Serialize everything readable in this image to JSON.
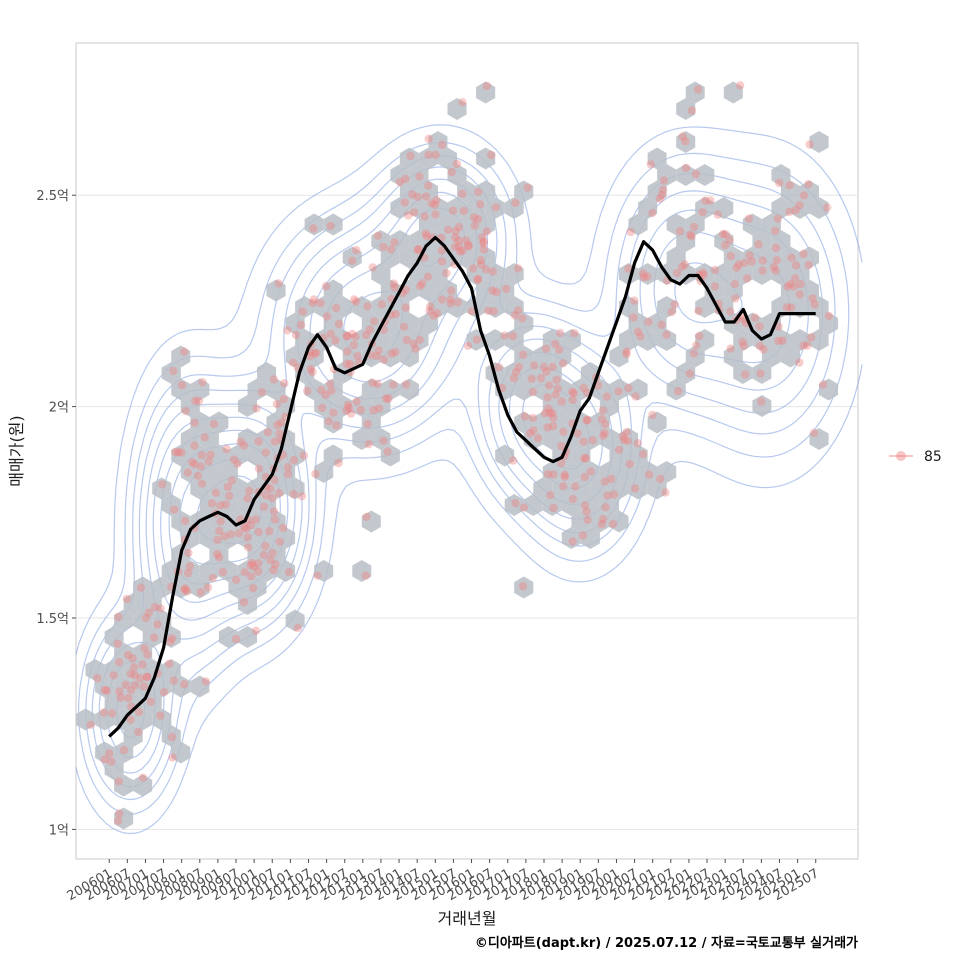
{
  "chart_data": {
    "type": "scatter",
    "title": "",
    "xlabel": "거래년월",
    "ylabel": "매매가(원)",
    "caption": "©디아파트(dapt.kr) / 2025.07.12 / 자료=국토교통부 실거래가",
    "x_ticks": [
      "200601",
      "200607",
      "200701",
      "200707",
      "200801",
      "200807",
      "200901",
      "200907",
      "201001",
      "201007",
      "201101",
      "201107",
      "201201",
      "201207",
      "201301",
      "201307",
      "201401",
      "201407",
      "201501",
      "201507",
      "201601",
      "201607",
      "201701",
      "201707",
      "201801",
      "201807",
      "201901",
      "201907",
      "202001",
      "202007",
      "202101",
      "202107",
      "202201",
      "202207",
      "202301",
      "202307",
      "202401",
      "202407",
      "202501",
      "202507"
    ],
    "y_ticks": [
      {
        "value": 1.0,
        "label": "1억"
      },
      {
        "value": 1.5,
        "label": "1.5억"
      },
      {
        "value": 2.0,
        "label": "2억"
      },
      {
        "value": 2.5,
        "label": "2.5억"
      }
    ],
    "xlim": [
      "2005-02",
      "2026-09"
    ],
    "ylim": [
      0.93,
      2.86
    ],
    "grid": true,
    "legend": {
      "position": "right",
      "entries": [
        {
          "label": "85",
          "color": "#f08080"
        }
      ]
    },
    "colors": {
      "points": "#f08080",
      "hex": "#b8bec6",
      "contour": "#7b9de0",
      "trend": "#000000",
      "grid": "#e5e5e5",
      "panel_border": "#c8c8c8"
    },
    "series": [
      {
        "kind": "trend_line",
        "x": [
          "2006-01",
          "2006-04",
          "2006-07",
          "2006-10",
          "2007-01",
          "2007-04",
          "2007-07",
          "2007-10",
          "2008-01",
          "2008-04",
          "2008-07",
          "2008-10",
          "2009-01",
          "2009-04",
          "2009-07",
          "2009-10",
          "2010-01",
          "2010-04",
          "2010-07",
          "2010-10",
          "2011-01",
          "2011-04",
          "2011-07",
          "2011-10",
          "2012-01",
          "2012-04",
          "2012-07",
          "2012-10",
          "2013-01",
          "2013-04",
          "2013-07",
          "2013-10",
          "2014-01",
          "2014-04",
          "2014-07",
          "2014-10",
          "2015-01",
          "2015-04",
          "2015-07",
          "2015-10",
          "2016-01",
          "2016-04",
          "2016-07",
          "2016-10",
          "2017-01",
          "2017-04",
          "2017-07",
          "2017-10",
          "2018-01",
          "2018-04",
          "2018-07",
          "2018-10",
          "2019-01",
          "2019-04",
          "2019-07",
          "2019-10",
          "2020-01",
          "2020-04",
          "2020-07",
          "2020-10",
          "2021-01",
          "2021-04",
          "2021-07",
          "2021-10",
          "2022-01",
          "2022-04",
          "2022-07",
          "2022-10",
          "2023-01",
          "2023-04",
          "2023-07",
          "2023-10",
          "2024-01",
          "2024-04",
          "2024-07",
          "2024-10",
          "2025-01",
          "2025-04",
          "2025-07"
        ],
        "y": [
          1.22,
          1.24,
          1.27,
          1.29,
          1.31,
          1.36,
          1.43,
          1.55,
          1.66,
          1.71,
          1.73,
          1.74,
          1.75,
          1.74,
          1.72,
          1.73,
          1.78,
          1.81,
          1.84,
          1.9,
          1.99,
          2.08,
          2.14,
          2.17,
          2.14,
          2.09,
          2.08,
          2.09,
          2.1,
          2.15,
          2.19,
          2.23,
          2.27,
          2.31,
          2.34,
          2.38,
          2.4,
          2.38,
          2.35,
          2.32,
          2.28,
          2.18,
          2.12,
          2.04,
          1.98,
          1.94,
          1.92,
          1.9,
          1.88,
          1.87,
          1.88,
          1.93,
          1.99,
          2.02,
          2.08,
          2.14,
          2.2,
          2.26,
          2.34,
          2.39,
          2.37,
          2.33,
          2.3,
          2.29,
          2.31,
          2.31,
          2.28,
          2.24,
          2.2,
          2.2,
          2.23,
          2.18,
          2.16,
          2.17,
          2.22,
          2.22,
          2.22,
          2.22,
          2.22
        ]
      }
    ],
    "scatter_clusters": [
      {
        "x": "2006-06",
        "y": 1.3,
        "sx": 0.45,
        "sy": 0.1,
        "n": 30
      },
      {
        "x": "2007-06",
        "y": 1.42,
        "sx": 0.45,
        "sy": 0.1,
        "n": 30
      },
      {
        "x": "2008-06",
        "y": 1.78,
        "sx": 0.55,
        "sy": 0.14,
        "n": 40
      },
      {
        "x": "2009-09",
        "y": 1.74,
        "sx": 0.6,
        "sy": 0.12,
        "n": 45
      },
      {
        "x": "2010-09",
        "y": 1.85,
        "sx": 0.6,
        "sy": 0.18,
        "n": 40
      },
      {
        "x": "2011-09",
        "y": 2.15,
        "sx": 0.55,
        "sy": 0.12,
        "n": 35
      },
      {
        "x": "2012-09",
        "y": 2.08,
        "sx": 0.55,
        "sy": 0.1,
        "n": 30
      },
      {
        "x": "2013-09",
        "y": 2.18,
        "sx": 0.55,
        "sy": 0.13,
        "n": 35
      },
      {
        "x": "2014-09",
        "y": 2.4,
        "sx": 0.55,
        "sy": 0.1,
        "n": 40
      },
      {
        "x": "2015-09",
        "y": 2.38,
        "sx": 0.55,
        "sy": 0.12,
        "n": 35
      },
      {
        "x": "2016-09",
        "y": 2.3,
        "sx": 0.55,
        "sy": 0.14,
        "n": 25
      },
      {
        "x": "2017-09",
        "y": 2.02,
        "sx": 0.55,
        "sy": 0.1,
        "n": 30
      },
      {
        "x": "2018-09",
        "y": 1.88,
        "sx": 0.55,
        "sy": 0.12,
        "n": 35
      },
      {
        "x": "2019-09",
        "y": 1.9,
        "sx": 0.55,
        "sy": 0.12,
        "n": 30
      },
      {
        "x": "2020-09",
        "y": 2.1,
        "sx": 0.55,
        "sy": 0.15,
        "n": 25
      },
      {
        "x": "2021-09",
        "y": 2.4,
        "sx": 0.55,
        "sy": 0.15,
        "n": 25
      },
      {
        "x": "2022-09",
        "y": 2.28,
        "sx": 0.55,
        "sy": 0.12,
        "n": 25
      },
      {
        "x": "2023-09",
        "y": 2.28,
        "sx": 0.55,
        "sy": 0.12,
        "n": 25
      },
      {
        "x": "2024-09",
        "y": 2.2,
        "sx": 0.55,
        "sy": 0.16,
        "n": 20
      },
      {
        "x": "2025-03",
        "y": 2.3,
        "sx": 0.4,
        "sy": 0.2,
        "n": 15
      }
    ],
    "scatter_extra": [
      {
        "x": "2006-04",
        "y": 1.02
      },
      {
        "x": "2006-01",
        "y": 1.18
      },
      {
        "x": "2007-10",
        "y": 1.17
      },
      {
        "x": "2015-10",
        "y": 2.72
      },
      {
        "x": "2022-02",
        "y": 2.7
      },
      {
        "x": "2022-04",
        "y": 2.75
      },
      {
        "x": "2023-06",
        "y": 2.76
      },
      {
        "x": "2025-05",
        "y": 2.62
      },
      {
        "x": "2011-10",
        "y": 1.6
      },
      {
        "x": "2013-02",
        "y": 1.6
      },
      {
        "x": "2009-07",
        "y": 1.45
      },
      {
        "x": "2008-09",
        "y": 1.35
      }
    ],
    "density_peaks": [
      {
        "x": "2009-11",
        "y": 1.76,
        "sx": 0.9,
        "sy": 0.14,
        "w": 1.0
      },
      {
        "x": "2008-03",
        "y": 1.72,
        "sx": 0.8,
        "sy": 0.18,
        "w": 0.7
      },
      {
        "x": "2006-08",
        "y": 1.28,
        "sx": 0.7,
        "sy": 0.12,
        "w": 0.55
      },
      {
        "x": "2013-03",
        "y": 2.18,
        "sx": 1.4,
        "sy": 0.14,
        "w": 0.7
      },
      {
        "x": "2015-03",
        "y": 2.4,
        "sx": 1.0,
        "sy": 0.11,
        "w": 0.55
      },
      {
        "x": "2017-09",
        "y": 2.0,
        "sx": 0.9,
        "sy": 0.12,
        "w": 0.55
      },
      {
        "x": "2019-01",
        "y": 1.9,
        "sx": 0.9,
        "sy": 0.13,
        "w": 0.55
      },
      {
        "x": "2021-11",
        "y": 2.28,
        "sx": 1.1,
        "sy": 0.16,
        "w": 0.45
      },
      {
        "x": "2024-03",
        "y": 2.22,
        "sx": 1.2,
        "sy": 0.18,
        "w": 0.4
      }
    ]
  }
}
